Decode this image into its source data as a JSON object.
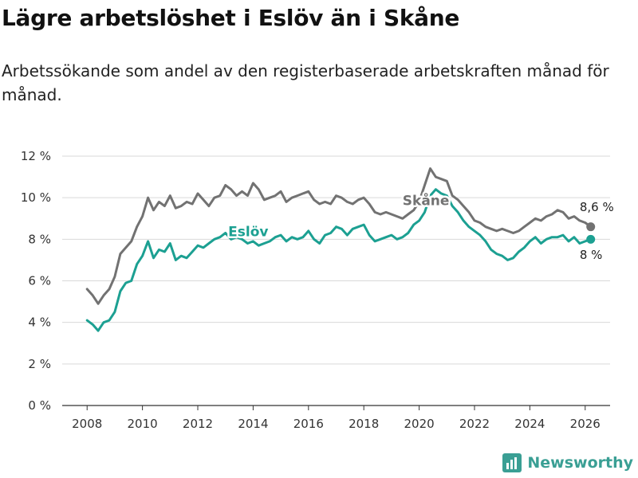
{
  "title": "Lägre arbetslöshet i Eslöv än i Skåne",
  "subtitle": "Arbetssökande som andel av den registerbaserade arbetskraften månad för månad.",
  "brand": "Newsworthy",
  "colors": {
    "skane": "#727272",
    "eslov": "#1ca092",
    "grid": "#d9d9d9",
    "axis": "#333333",
    "brand": "#3a9f94"
  },
  "chart_data": {
    "type": "line",
    "title": "Lägre arbetslöshet i Eslöv än i Skåne",
    "xlabel": "",
    "ylabel": "",
    "xlim": [
      2007.1,
      2026.9
    ],
    "ylim": [
      0,
      12
    ],
    "y_ticks": [
      0,
      2,
      4,
      6,
      8,
      10,
      12
    ],
    "y_tick_labels": [
      "0 %",
      "2 %",
      "4 %",
      "6 %",
      "8 %",
      "10 %",
      "12 %"
    ],
    "x_ticks": [
      2008,
      2010,
      2012,
      2014,
      2016,
      2018,
      2020,
      2022,
      2024,
      2026
    ],
    "x_tick_labels": [
      "2008",
      "2010",
      "2012",
      "2014",
      "2016",
      "2018",
      "2020",
      "2022",
      "2024",
      "2026"
    ],
    "grid": true,
    "series": [
      {
        "name": "Skåne",
        "label": "Skåne",
        "end_label": "8,6 %",
        "x": [
          2008.0,
          2008.2,
          2008.4,
          2008.6,
          2008.8,
          2009.0,
          2009.2,
          2009.4,
          2009.6,
          2009.8,
          2010.0,
          2010.2,
          2010.4,
          2010.6,
          2010.8,
          2011.0,
          2011.2,
          2011.4,
          2011.6,
          2011.8,
          2012.0,
          2012.2,
          2012.4,
          2012.6,
          2012.8,
          2013.0,
          2013.2,
          2013.4,
          2013.6,
          2013.8,
          2014.0,
          2014.2,
          2014.4,
          2014.6,
          2014.8,
          2015.0,
          2015.2,
          2015.4,
          2015.6,
          2015.8,
          2016.0,
          2016.2,
          2016.4,
          2016.6,
          2016.8,
          2017.0,
          2017.2,
          2017.4,
          2017.6,
          2017.8,
          2018.0,
          2018.2,
          2018.4,
          2018.6,
          2018.8,
          2019.0,
          2019.2,
          2019.4,
          2019.6,
          2019.8,
          2020.0,
          2020.2,
          2020.4,
          2020.6,
          2020.8,
          2021.0,
          2021.2,
          2021.4,
          2021.6,
          2021.8,
          2022.0,
          2022.2,
          2022.4,
          2022.6,
          2022.8,
          2023.0,
          2023.2,
          2023.4,
          2023.6,
          2023.8,
          2024.0,
          2024.2,
          2024.4,
          2024.6,
          2024.8,
          2025.0,
          2025.2,
          2025.4,
          2025.6,
          2025.8,
          2026.0,
          2026.2
        ],
        "values": [
          5.6,
          5.3,
          4.9,
          5.3,
          5.6,
          6.2,
          7.3,
          7.6,
          7.9,
          8.6,
          9.1,
          10.0,
          9.4,
          9.8,
          9.6,
          10.1,
          9.5,
          9.6,
          9.8,
          9.7,
          10.2,
          9.9,
          9.6,
          10.0,
          10.1,
          10.6,
          10.4,
          10.1,
          10.3,
          10.1,
          10.7,
          10.4,
          9.9,
          10.0,
          10.1,
          10.3,
          9.8,
          10.0,
          10.1,
          10.2,
          10.3,
          9.9,
          9.7,
          9.8,
          9.7,
          10.1,
          10.0,
          9.8,
          9.7,
          9.9,
          10.0,
          9.7,
          9.3,
          9.2,
          9.3,
          9.2,
          9.1,
          9.0,
          9.2,
          9.4,
          9.8,
          10.6,
          11.4,
          11.0,
          10.9,
          10.8,
          10.1,
          9.9,
          9.6,
          9.3,
          8.9,
          8.8,
          8.6,
          8.5,
          8.4,
          8.5,
          8.4,
          8.3,
          8.4,
          8.6,
          8.8,
          9.0,
          8.9,
          9.1,
          9.2,
          9.4,
          9.3,
          9.0,
          9.1,
          8.9,
          8.8,
          8.6
        ]
      },
      {
        "name": "Eslöv",
        "label": "Eslöv",
        "end_label": "8 %",
        "x": [
          2008.0,
          2008.2,
          2008.4,
          2008.6,
          2008.8,
          2009.0,
          2009.2,
          2009.4,
          2009.6,
          2009.8,
          2010.0,
          2010.2,
          2010.4,
          2010.6,
          2010.8,
          2011.0,
          2011.2,
          2011.4,
          2011.6,
          2011.8,
          2012.0,
          2012.2,
          2012.4,
          2012.6,
          2012.8,
          2013.0,
          2013.2,
          2013.4,
          2013.6,
          2013.8,
          2014.0,
          2014.2,
          2014.4,
          2014.6,
          2014.8,
          2015.0,
          2015.2,
          2015.4,
          2015.6,
          2015.8,
          2016.0,
          2016.2,
          2016.4,
          2016.6,
          2016.8,
          2017.0,
          2017.2,
          2017.4,
          2017.6,
          2017.8,
          2018.0,
          2018.2,
          2018.4,
          2018.6,
          2018.8,
          2019.0,
          2019.2,
          2019.4,
          2019.6,
          2019.8,
          2020.0,
          2020.2,
          2020.4,
          2020.6,
          2020.8,
          2021.0,
          2021.2,
          2021.4,
          2021.6,
          2021.8,
          2022.0,
          2022.2,
          2022.4,
          2022.6,
          2022.8,
          2023.0,
          2023.2,
          2023.4,
          2023.6,
          2023.8,
          2024.0,
          2024.2,
          2024.4,
          2024.6,
          2024.8,
          2025.0,
          2025.2,
          2025.4,
          2025.6,
          2025.8,
          2026.0,
          2026.2
        ],
        "values": [
          4.1,
          3.9,
          3.6,
          4.0,
          4.1,
          4.5,
          5.5,
          5.9,
          6.0,
          6.8,
          7.2,
          7.9,
          7.1,
          7.5,
          7.4,
          7.8,
          7.0,
          7.2,
          7.1,
          7.4,
          7.7,
          7.6,
          7.8,
          8.0,
          8.1,
          8.3,
          8.0,
          8.1,
          8.0,
          7.8,
          7.9,
          7.7,
          7.8,
          7.9,
          8.1,
          8.2,
          7.9,
          8.1,
          8.0,
          8.1,
          8.4,
          8.0,
          7.8,
          8.2,
          8.3,
          8.6,
          8.5,
          8.2,
          8.5,
          8.6,
          8.7,
          8.2,
          7.9,
          8.0,
          8.1,
          8.2,
          8.0,
          8.1,
          8.3,
          8.7,
          8.9,
          9.3,
          10.1,
          10.4,
          10.2,
          10.1,
          9.6,
          9.3,
          8.9,
          8.6,
          8.4,
          8.2,
          7.9,
          7.5,
          7.3,
          7.2,
          7.0,
          7.1,
          7.4,
          7.6,
          7.9,
          8.1,
          7.8,
          8.0,
          8.1,
          8.1,
          8.2,
          7.9,
          8.1,
          7.8,
          7.9,
          8.0
        ]
      }
    ]
  }
}
